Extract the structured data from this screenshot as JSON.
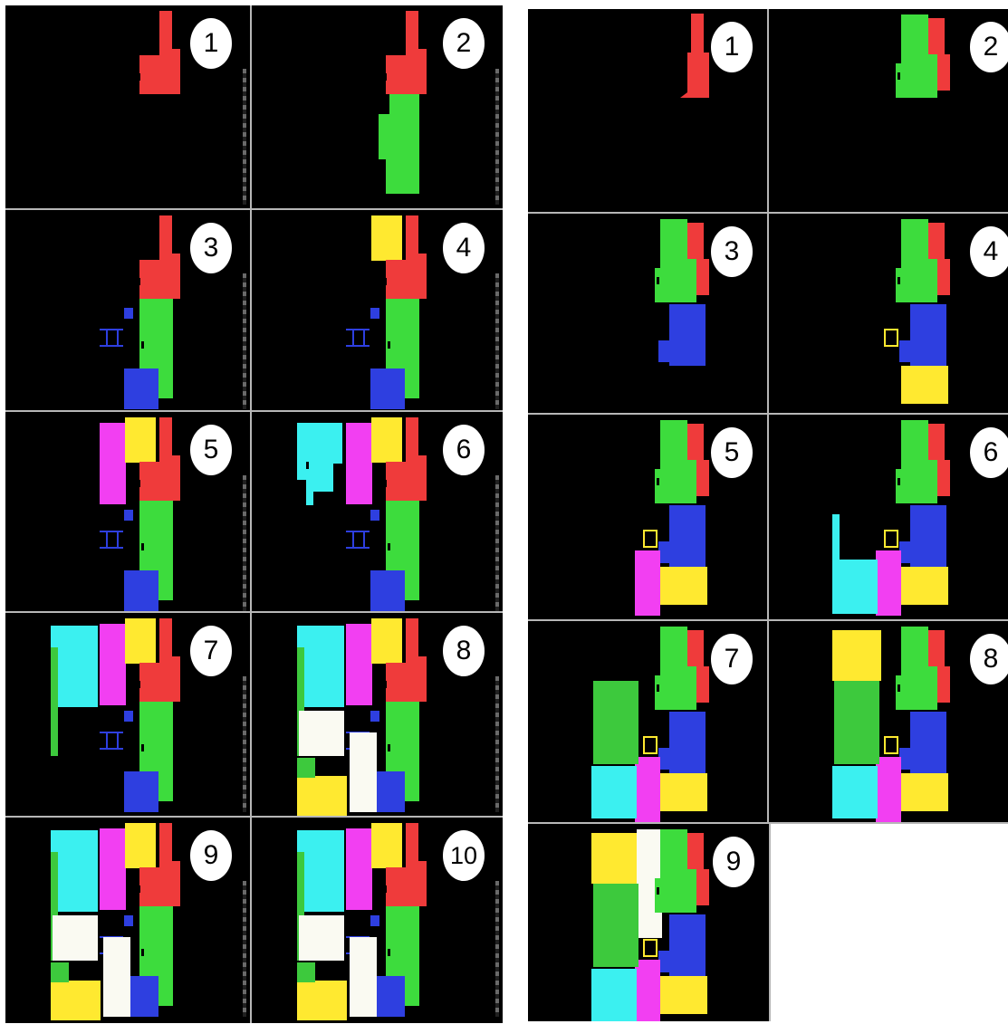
{
  "colors": {
    "red": "#ef3b3b",
    "green": "#3ddc3d",
    "blue": "#2e3fe0",
    "yellow": "#ffe930",
    "magenta": "#f23ff2",
    "cyan": "#3bf0f0",
    "white": "#fafaf2",
    "dark_green": "#3dc93d",
    "background": "#000000"
  },
  "left_group": {
    "panels": [
      {
        "label": "1",
        "rooms": []
      },
      {
        "label": "2",
        "rooms": [
          "red",
          "green"
        ]
      },
      {
        "label": "3",
        "rooms": [
          "red",
          "green",
          "blue"
        ]
      },
      {
        "label": "4",
        "rooms": [
          "red",
          "yellow",
          "green",
          "blue"
        ]
      },
      {
        "label": "5",
        "rooms": [
          "magenta",
          "yellow",
          "red",
          "green",
          "blue"
        ]
      },
      {
        "label": "6",
        "rooms": [
          "cyan",
          "magenta",
          "yellow",
          "red",
          "green",
          "blue"
        ]
      },
      {
        "label": "7",
        "rooms": [
          "cyan",
          "green",
          "magenta",
          "yellow",
          "red",
          "blue"
        ]
      },
      {
        "label": "8",
        "rooms": [
          "cyan",
          "green",
          "magenta",
          "yellow",
          "red",
          "white",
          "blue"
        ]
      },
      {
        "label": "9",
        "rooms": [
          "cyan",
          "green",
          "magenta",
          "yellow",
          "red",
          "white",
          "blue"
        ]
      },
      {
        "label": "10",
        "rooms": [
          "cyan",
          "green",
          "magenta",
          "yellow",
          "red",
          "white",
          "blue"
        ]
      }
    ]
  },
  "right_group": {
    "panels": [
      {
        "label": "1",
        "rooms": [
          "red"
        ]
      },
      {
        "label": "2",
        "rooms": [
          "green",
          "red"
        ]
      },
      {
        "label": "3",
        "rooms": [
          "green",
          "red",
          "blue"
        ]
      },
      {
        "label": "4",
        "rooms": [
          "green",
          "red",
          "blue",
          "yellow"
        ]
      },
      {
        "label": "5",
        "rooms": [
          "green",
          "red",
          "blue",
          "yellow",
          "magenta"
        ]
      },
      {
        "label": "6",
        "rooms": [
          "green",
          "red",
          "blue",
          "yellow",
          "magenta",
          "cyan"
        ]
      },
      {
        "label": "7",
        "rooms": [
          "green",
          "red",
          "blue",
          "yellow",
          "magenta",
          "cyan"
        ]
      },
      {
        "label": "8",
        "rooms": [
          "yellow",
          "green",
          "red",
          "blue",
          "magenta",
          "cyan"
        ]
      },
      {
        "label": "9",
        "rooms": [
          "yellow",
          "white",
          "green",
          "red",
          "blue",
          "magenta",
          "cyan"
        ]
      }
    ]
  }
}
